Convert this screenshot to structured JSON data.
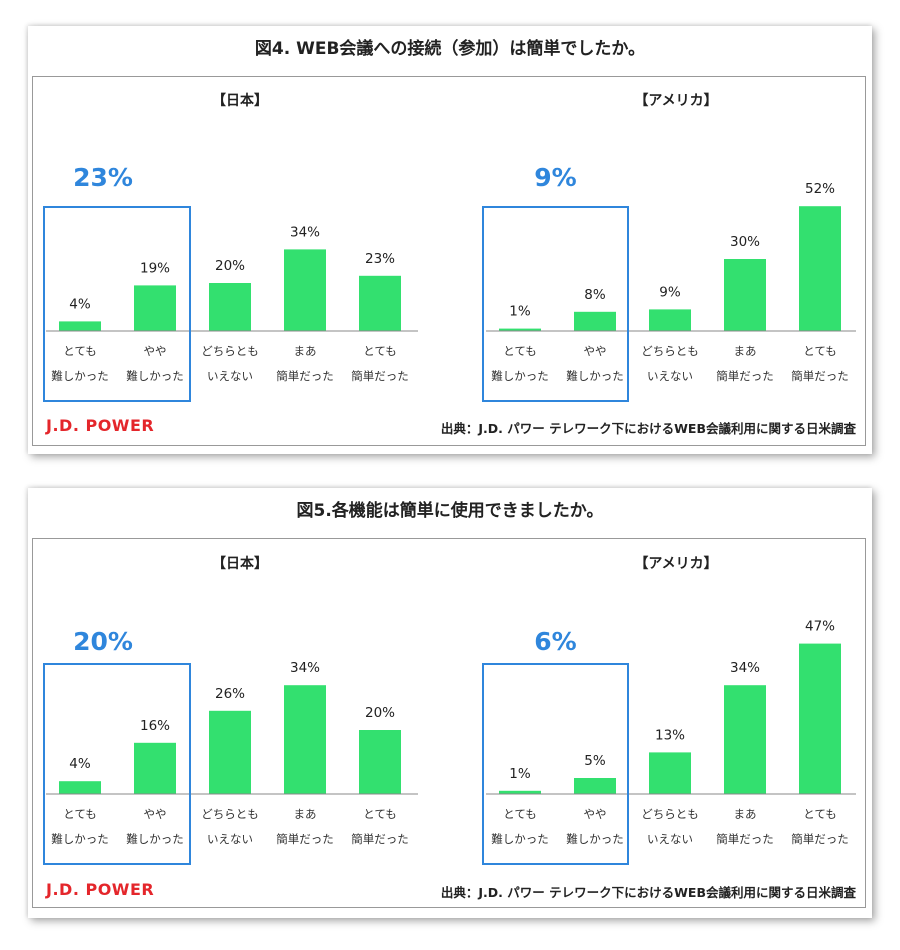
{
  "chart_data": [
    {
      "type": "bar",
      "title": "図4. WEB会議への接続（参加）は簡単でしたか。",
      "logo": "J.D. POWER",
      "source": "出典：J.D. パワー テレワーク下におけるWEB会議利用に関する日米調査",
      "categories": [
        [
          "とても",
          "難しかった"
        ],
        [
          "やや",
          "難しかった"
        ],
        [
          "どちらとも",
          "いえない"
        ],
        [
          "まあ",
          "簡単だった"
        ],
        [
          "とても",
          "簡単だった"
        ]
      ],
      "panels": [
        {
          "name": "【日本】",
          "values": [
            4,
            19,
            20,
            34,
            23
          ],
          "labels": [
            "4%",
            "19%",
            "20%",
            "34%",
            "23%"
          ],
          "highlight": "23%"
        },
        {
          "name": "【アメリカ】",
          "values": [
            1,
            8,
            9,
            30,
            52
          ],
          "labels": [
            "1%",
            "8%",
            "9%",
            "30%",
            "52%"
          ],
          "highlight": "9%"
        }
      ],
      "highlight_categories": [
        0,
        1
      ],
      "bar_color": "#33e06f",
      "highlight_color": "#2f86dc"
    },
    {
      "type": "bar",
      "title": "図5.各機能は簡単に使用できましたか。",
      "logo": "J.D. POWER",
      "source": "出典：J.D. パワー テレワーク下におけるWEB会議利用に関する日米調査",
      "categories": [
        [
          "とても",
          "難しかった"
        ],
        [
          "やや",
          "難しかった"
        ],
        [
          "どちらとも",
          "いえない"
        ],
        [
          "まあ",
          "簡単だった"
        ],
        [
          "とても",
          "簡単だった"
        ]
      ],
      "panels": [
        {
          "name": "【日本】",
          "values": [
            4,
            16,
            26,
            34,
            20
          ],
          "labels": [
            "4%",
            "16%",
            "26%",
            "34%",
            "20%"
          ],
          "highlight": "20%"
        },
        {
          "name": "【アメリカ】",
          "values": [
            1,
            5,
            13,
            34,
            47
          ],
          "labels": [
            "1%",
            "5%",
            "13%",
            "34%",
            "47%"
          ],
          "highlight": "6%"
        }
      ],
      "highlight_categories": [
        0,
        1
      ],
      "bar_color": "#33e06f",
      "highlight_color": "#2f86dc"
    }
  ]
}
